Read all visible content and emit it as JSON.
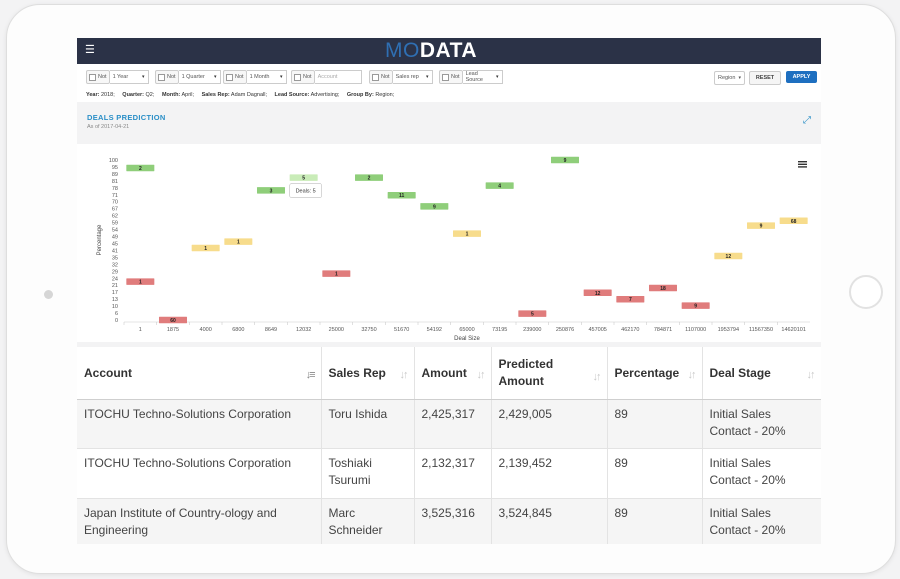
{
  "app": {
    "logo_left": "MO",
    "logo_right": "DATA",
    "menu_icon": "hamburger-icon"
  },
  "filters": {
    "not_label": "Not",
    "items": [
      {
        "value": "1 Year"
      },
      {
        "value": "1 Quarter"
      },
      {
        "value": "1 Month"
      },
      {
        "placeholder": "Account"
      },
      {
        "value": "Sales rep"
      },
      {
        "value": "Lead Source"
      }
    ],
    "region": "Region",
    "reset": "RESET",
    "apply": "APPLY"
  },
  "summary": [
    {
      "label": "Year:",
      "value": "2018;"
    },
    {
      "label": "Quarter:",
      "value": "Q2;"
    },
    {
      "label": "Month:",
      "value": "April;"
    },
    {
      "label": "Sales Rep:",
      "value": "Adam Dagnall;"
    },
    {
      "label": "Lead Source:",
      "value": "Advertising;"
    },
    {
      "label": "Group By:",
      "value": "Region;"
    }
  ],
  "card": {
    "title": "DEALS PREDICTION",
    "subtitle": "As of 2017-04-21",
    "expand_icon": "expand-icon"
  },
  "chart_data": {
    "type": "scatter",
    "ylabel": "Percentage",
    "xlabel": "Deal Size",
    "yticks": [
      0,
      6,
      10,
      13,
      17,
      21,
      24,
      29,
      32,
      35,
      41,
      45,
      49,
      54,
      59,
      62,
      67,
      70,
      71,
      78,
      81,
      89,
      95,
      100
    ],
    "categories": [
      "1",
      "1875",
      "4000",
      "6800",
      "8649",
      "12032",
      "25000",
      "32750",
      "51670",
      "54192",
      "65000",
      "73195",
      "239000",
      "250876",
      "457005",
      "462170",
      "784871",
      "1107000",
      "1953794",
      "11567350",
      "14620101"
    ],
    "points": [
      {
        "x": "1",
        "y": 24,
        "count": "1",
        "color": "#e07c7c"
      },
      {
        "x": "1",
        "y": 95,
        "count": "2",
        "color": "#8fce7a"
      },
      {
        "x": "1875",
        "y": 0,
        "count": "60",
        "color": "#e07c7c"
      },
      {
        "x": "4000",
        "y": 45,
        "count": "1",
        "color": "#f7dc8c"
      },
      {
        "x": "6800",
        "y": 49,
        "count": "1",
        "color": "#f7dc8c"
      },
      {
        "x": "8649",
        "y": 81,
        "count": "3",
        "color": "#8fce7a"
      },
      {
        "x": "12032",
        "y": 89,
        "count": "5",
        "color": "#c9ecb8"
      },
      {
        "x": "25000",
        "y": 29,
        "count": "1",
        "color": "#e07c7c"
      },
      {
        "x": "32750",
        "y": 89,
        "count": "2",
        "color": "#8fce7a"
      },
      {
        "x": "51670",
        "y": 78,
        "count": "11",
        "color": "#8fce7a"
      },
      {
        "x": "54192",
        "y": 71,
        "count": "9",
        "color": "#8fce7a"
      },
      {
        "x": "65000",
        "y": 54,
        "count": "1",
        "color": "#f7dc8c"
      },
      {
        "x": "73195",
        "y": 84,
        "count": "4",
        "color": "#8fce7a"
      },
      {
        "x": "239000",
        "y": 4,
        "count": "5",
        "color": "#e07c7c"
      },
      {
        "x": "250876",
        "y": 100,
        "count": "9",
        "color": "#8fce7a"
      },
      {
        "x": "457005",
        "y": 17,
        "count": "12",
        "color": "#e07c7c"
      },
      {
        "x": "462170",
        "y": 13,
        "count": "7",
        "color": "#e07c7c"
      },
      {
        "x": "784871",
        "y": 20,
        "count": "18",
        "color": "#e07c7c"
      },
      {
        "x": "1107000",
        "y": 9,
        "count": "9",
        "color": "#e07c7c"
      },
      {
        "x": "1953794",
        "y": 40,
        "count": "12",
        "color": "#f7dc8c"
      },
      {
        "x": "11567350",
        "y": 59,
        "count": "9",
        "color": "#f7dc8c"
      },
      {
        "x": "14620101",
        "y": 62,
        "count": "68",
        "color": "#f7dc8c"
      }
    ],
    "tooltip": {
      "x": "12032",
      "label": "Deals",
      "value": "5"
    },
    "menu_icon": "chart-menu-icon"
  },
  "table": {
    "columns": [
      "Account",
      "Sales Rep",
      "Amount",
      "Predicted Amount",
      "Percentage",
      "Deal Stage"
    ],
    "rows": [
      [
        "ITOCHU Techno-Solutions Corporation",
        "Toru Ishida",
        "2,425,317",
        "2,429,005",
        "89",
        "Initial Sales Contact - 20%"
      ],
      [
        "ITOCHU Techno-Solutions Corporation",
        "Toshiaki Tsurumi",
        "2,132,317",
        "2,139,452",
        "89",
        "Initial Sales Contact - 20%"
      ],
      [
        "Japan Institute of Country-ology and Engineering",
        "Marc Schneider",
        "3,525,316",
        "3,524,845",
        "89",
        "Initial Sales Contact - 20%"
      ]
    ]
  }
}
